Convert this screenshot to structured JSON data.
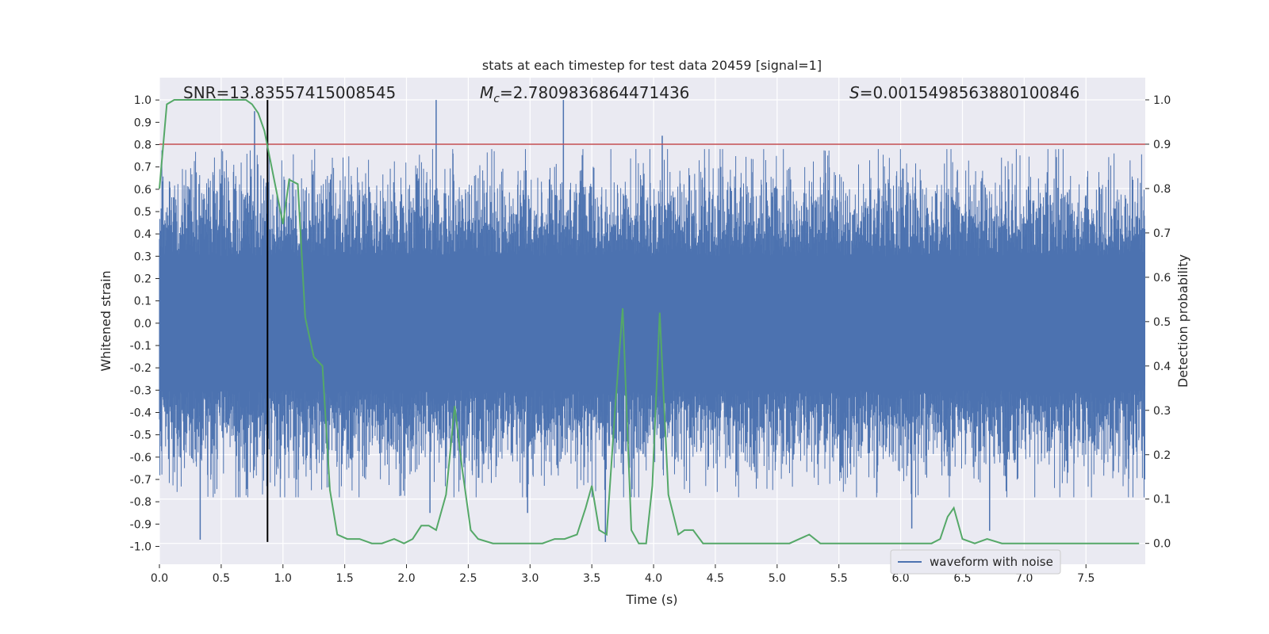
{
  "chart_data": {
    "type": "line",
    "title": "stats at each timestep for test data 20459 [signal=1]",
    "xlabel": "Time (s)",
    "ylabel": "Whitened strain",
    "y2label": "Detection probability",
    "xlim": [
      0,
      7.98
    ],
    "ylim": [
      -1.08,
      1.1
    ],
    "y2lim": [
      -0.047,
      1.05
    ],
    "xticks": [
      "0.0",
      "0.5",
      "1.0",
      "1.5",
      "2.0",
      "2.5",
      "3.0",
      "3.5",
      "4.0",
      "4.5",
      "5.0",
      "5.5",
      "6.0",
      "6.5",
      "7.0",
      "7.5"
    ],
    "yticks": [
      "1.0",
      "0.9",
      "0.8",
      "0.7",
      "0.6",
      "0.5",
      "0.4",
      "0.3",
      "0.2",
      "0.1",
      "0.0",
      "-0.1",
      "-0.2",
      "-0.3",
      "-0.4",
      "-0.5",
      "-0.6",
      "-0.7",
      "-0.8",
      "-0.9",
      "-1.0"
    ],
    "y2ticks": [
      "1.0",
      "0.9",
      "0.8",
      "0.7",
      "0.6",
      "0.5",
      "0.4",
      "0.3",
      "0.2",
      "0.1",
      "0.0"
    ],
    "annotations": {
      "snr": "SNR=13.83557415008545",
      "mc_symbol": "M",
      "mc_sub": "c",
      "mc_value": "=2.7809836864471436",
      "s_symbol": "S",
      "s_value": "=0.0015498563880100846"
    },
    "legend": {
      "label": "waveform with noise",
      "position": "lower-right"
    },
    "threshold": {
      "value": 0.9,
      "axis": "right",
      "color": "#c44e52"
    },
    "event_marker": {
      "x": 0.875,
      "y_range": [
        -0.98,
        1.0
      ],
      "color": "#000000"
    },
    "series": [
      {
        "name": "waveform with noise",
        "axis": "left",
        "color": "#4c72b0",
        "description_peaks": [
          {
            "x": 0.33,
            "v": -0.97
          },
          {
            "x": 0.77,
            "v": 0.95
          },
          {
            "x": 0.87,
            "v": -0.73
          },
          {
            "x": 2.24,
            "v": 1.0
          },
          {
            "x": 2.19,
            "v": -0.85
          },
          {
            "x": 2.98,
            "v": -0.85
          },
          {
            "x": 3.27,
            "v": 1.0
          },
          {
            "x": 3.61,
            "v": -0.98
          },
          {
            "x": 4.07,
            "v": 0.84
          },
          {
            "x": 6.09,
            "v": -0.92
          },
          {
            "x": 6.72,
            "v": -0.93
          }
        ],
        "envelope": 0.45,
        "seed": 20459,
        "samples": 2400
      },
      {
        "name": "detection probability",
        "axis": "right",
        "color": "#55a868",
        "points": [
          [
            0.0,
            0.8
          ],
          [
            0.06,
            0.99
          ],
          [
            0.12,
            1.0
          ],
          [
            0.5,
            1.0
          ],
          [
            0.7,
            1.0
          ],
          [
            0.75,
            0.99
          ],
          [
            0.8,
            0.97
          ],
          [
            0.85,
            0.93
          ],
          [
            0.9,
            0.86
          ],
          [
            0.95,
            0.79
          ],
          [
            1.0,
            0.72
          ],
          [
            1.05,
            0.82
          ],
          [
            1.12,
            0.81
          ],
          [
            1.18,
            0.51
          ],
          [
            1.25,
            0.42
          ],
          [
            1.32,
            0.4
          ],
          [
            1.38,
            0.12
          ],
          [
            1.44,
            0.02
          ],
          [
            1.52,
            0.01
          ],
          [
            1.62,
            0.01
          ],
          [
            1.72,
            0.0
          ],
          [
            1.8,
            0.0
          ],
          [
            1.9,
            0.01
          ],
          [
            1.98,
            0.0
          ],
          [
            2.05,
            0.01
          ],
          [
            2.12,
            0.04
          ],
          [
            2.18,
            0.04
          ],
          [
            2.24,
            0.03
          ],
          [
            2.32,
            0.11
          ],
          [
            2.39,
            0.31
          ],
          [
            2.45,
            0.17
          ],
          [
            2.52,
            0.03
          ],
          [
            2.58,
            0.01
          ],
          [
            2.7,
            0.0
          ],
          [
            2.8,
            0.0
          ],
          [
            2.9,
            0.0
          ],
          [
            3.1,
            0.0
          ],
          [
            3.2,
            0.01
          ],
          [
            3.28,
            0.01
          ],
          [
            3.38,
            0.02
          ],
          [
            3.45,
            0.08
          ],
          [
            3.5,
            0.13
          ],
          [
            3.56,
            0.03
          ],
          [
            3.62,
            0.02
          ],
          [
            3.69,
            0.31
          ],
          [
            3.75,
            0.53
          ],
          [
            3.82,
            0.03
          ],
          [
            3.88,
            0.0
          ],
          [
            3.94,
            0.0
          ],
          [
            3.99,
            0.13
          ],
          [
            4.05,
            0.52
          ],
          [
            4.12,
            0.11
          ],
          [
            4.2,
            0.02
          ],
          [
            4.25,
            0.03
          ],
          [
            4.32,
            0.03
          ],
          [
            4.4,
            0.0
          ],
          [
            4.5,
            0.0
          ],
          [
            4.8,
            0.0
          ],
          [
            5.1,
            0.0
          ],
          [
            5.18,
            0.01
          ],
          [
            5.26,
            0.02
          ],
          [
            5.35,
            0.0
          ],
          [
            5.5,
            0.0
          ],
          [
            5.7,
            0.0
          ],
          [
            5.9,
            0.0
          ],
          [
            6.1,
            0.0
          ],
          [
            6.25,
            0.0
          ],
          [
            6.32,
            0.01
          ],
          [
            6.38,
            0.06
          ],
          [
            6.43,
            0.08
          ],
          [
            6.5,
            0.01
          ],
          [
            6.6,
            0.0
          ],
          [
            6.7,
            0.01
          ],
          [
            6.82,
            0.0
          ],
          [
            6.95,
            0.0
          ],
          [
            7.2,
            0.0
          ],
          [
            7.6,
            0.0
          ],
          [
            7.93,
            0.0
          ]
        ]
      }
    ]
  }
}
